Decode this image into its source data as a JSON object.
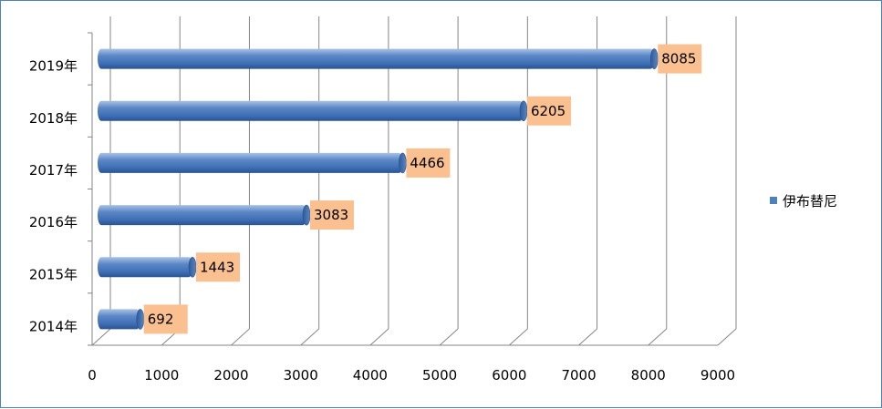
{
  "chart_data": {
    "type": "bar",
    "orientation": "horizontal",
    "categories": [
      "2014年",
      "2015年",
      "2016年",
      "2017年",
      "2018年",
      "2019年"
    ],
    "series": [
      {
        "name": "伊布替尼",
        "values": [
          692,
          1443,
          3083,
          4466,
          6205,
          8085
        ],
        "color": "#4f81bd"
      }
    ],
    "xlim": [
      0,
      9000
    ],
    "x_ticks": [
      0,
      1000,
      2000,
      3000,
      4000,
      5000,
      6000,
      7000,
      8000,
      9000
    ],
    "grid": true,
    "legend_position": "right",
    "data_label_color": "#fac090",
    "title": "",
    "xlabel": "",
    "ylabel": ""
  }
}
